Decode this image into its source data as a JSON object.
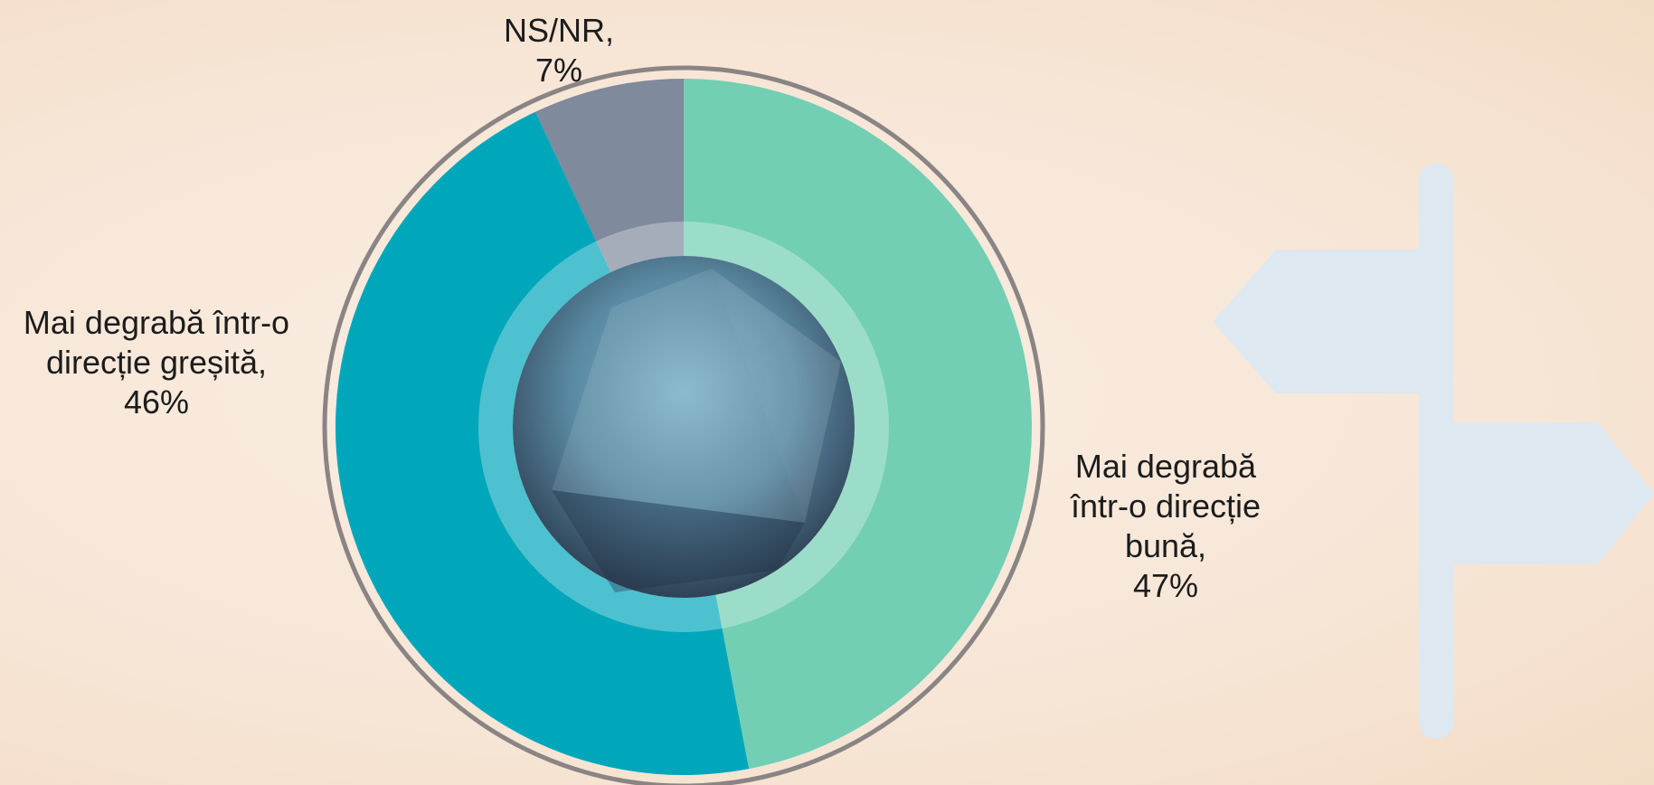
{
  "chart_data": {
    "type": "donut",
    "categories": [
      "Mai degrabă într-o direcție bună,",
      "Mai degrabă într-o direcție greșită,",
      "NS/NR,"
    ],
    "values": [
      47,
      46,
      7
    ],
    "value_labels": [
      "47%",
      "46%",
      "7%"
    ],
    "colors": [
      "#72cfb4",
      "#00a7bb",
      "#7f8a9c"
    ]
  }
}
